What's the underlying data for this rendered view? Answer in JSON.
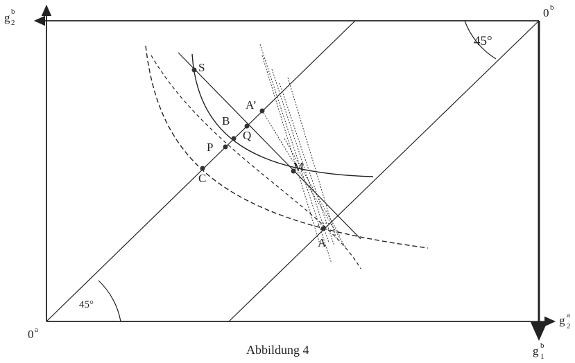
{
  "axes": {
    "origin_a": "0",
    "origin_a_sup": "a",
    "origin_b": "0",
    "origin_b_sup": "b",
    "top_left_main": "g",
    "top_left_sub": "2",
    "top_left_sup": "b",
    "right_main": "g",
    "right_sub": "2",
    "right_sup": "a",
    "bottom_right_main": "g",
    "bottom_right_sub": "1",
    "bottom_right_sup": "b"
  },
  "angles": {
    "top_right": "45°",
    "bottom_left": "45°"
  },
  "points": {
    "S": "S",
    "A_prime": "A’",
    "B": "B",
    "Q": "Q",
    "P": "P",
    "C": "C",
    "M": "M",
    "A": "A"
  },
  "caption": "Abbildung 4",
  "colors": {
    "ink": "#222222",
    "background": "#ffffff"
  }
}
